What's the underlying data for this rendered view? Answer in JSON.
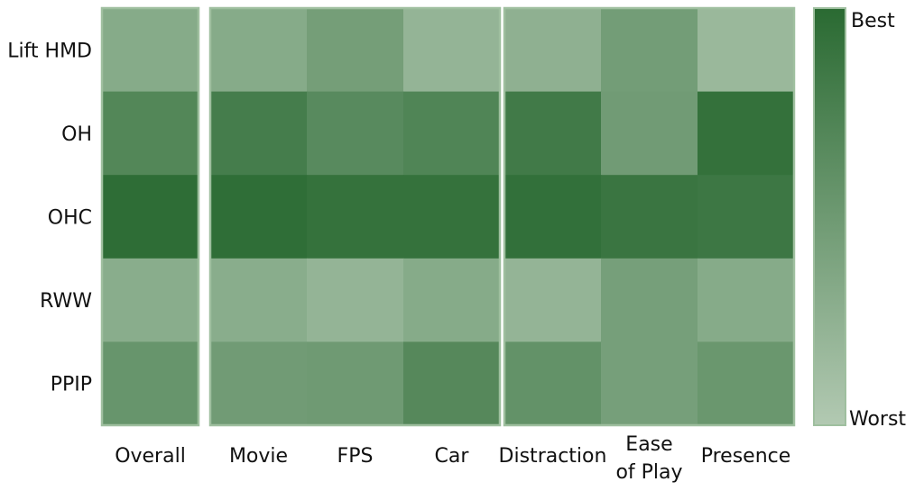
{
  "chart_data": {
    "type": "heatmap",
    "rows": [
      "Lift HMD",
      "OH",
      "OHC",
      "RWW",
      "PPIP"
    ],
    "groups": [
      {
        "columns": [
          "Overall"
        ]
      },
      {
        "columns": [
          "Movie",
          "FPS",
          "Car"
        ]
      },
      {
        "columns": [
          "Distraction",
          "Ease\nof Play",
          "Presence"
        ]
      }
    ],
    "columns": [
      "Overall",
      "Movie",
      "FPS",
      "Car",
      "Distraction",
      "Ease\nof Play",
      "Presence"
    ],
    "values": [
      [
        0.32,
        0.32,
        0.45,
        0.22,
        0.26,
        0.46,
        0.18
      ],
      [
        0.7,
        0.8,
        0.66,
        0.72,
        0.83,
        0.48,
        0.93
      ],
      [
        0.97,
        0.96,
        0.92,
        0.92,
        0.94,
        0.88,
        0.86
      ],
      [
        0.3,
        0.3,
        0.22,
        0.32,
        0.22,
        0.44,
        0.32
      ],
      [
        0.55,
        0.48,
        0.49,
        0.68,
        0.58,
        0.44,
        0.53
      ]
    ],
    "scale": {
      "min": 0,
      "max": 1,
      "min_label": "Worst",
      "max_label": "Best"
    },
    "colors": {
      "worst": "#b2c9b2",
      "best": "#2a6a32",
      "border": "#9fbf9f"
    },
    "xlabel": "",
    "ylabel": "",
    "title": "",
    "legend_position": "right"
  }
}
